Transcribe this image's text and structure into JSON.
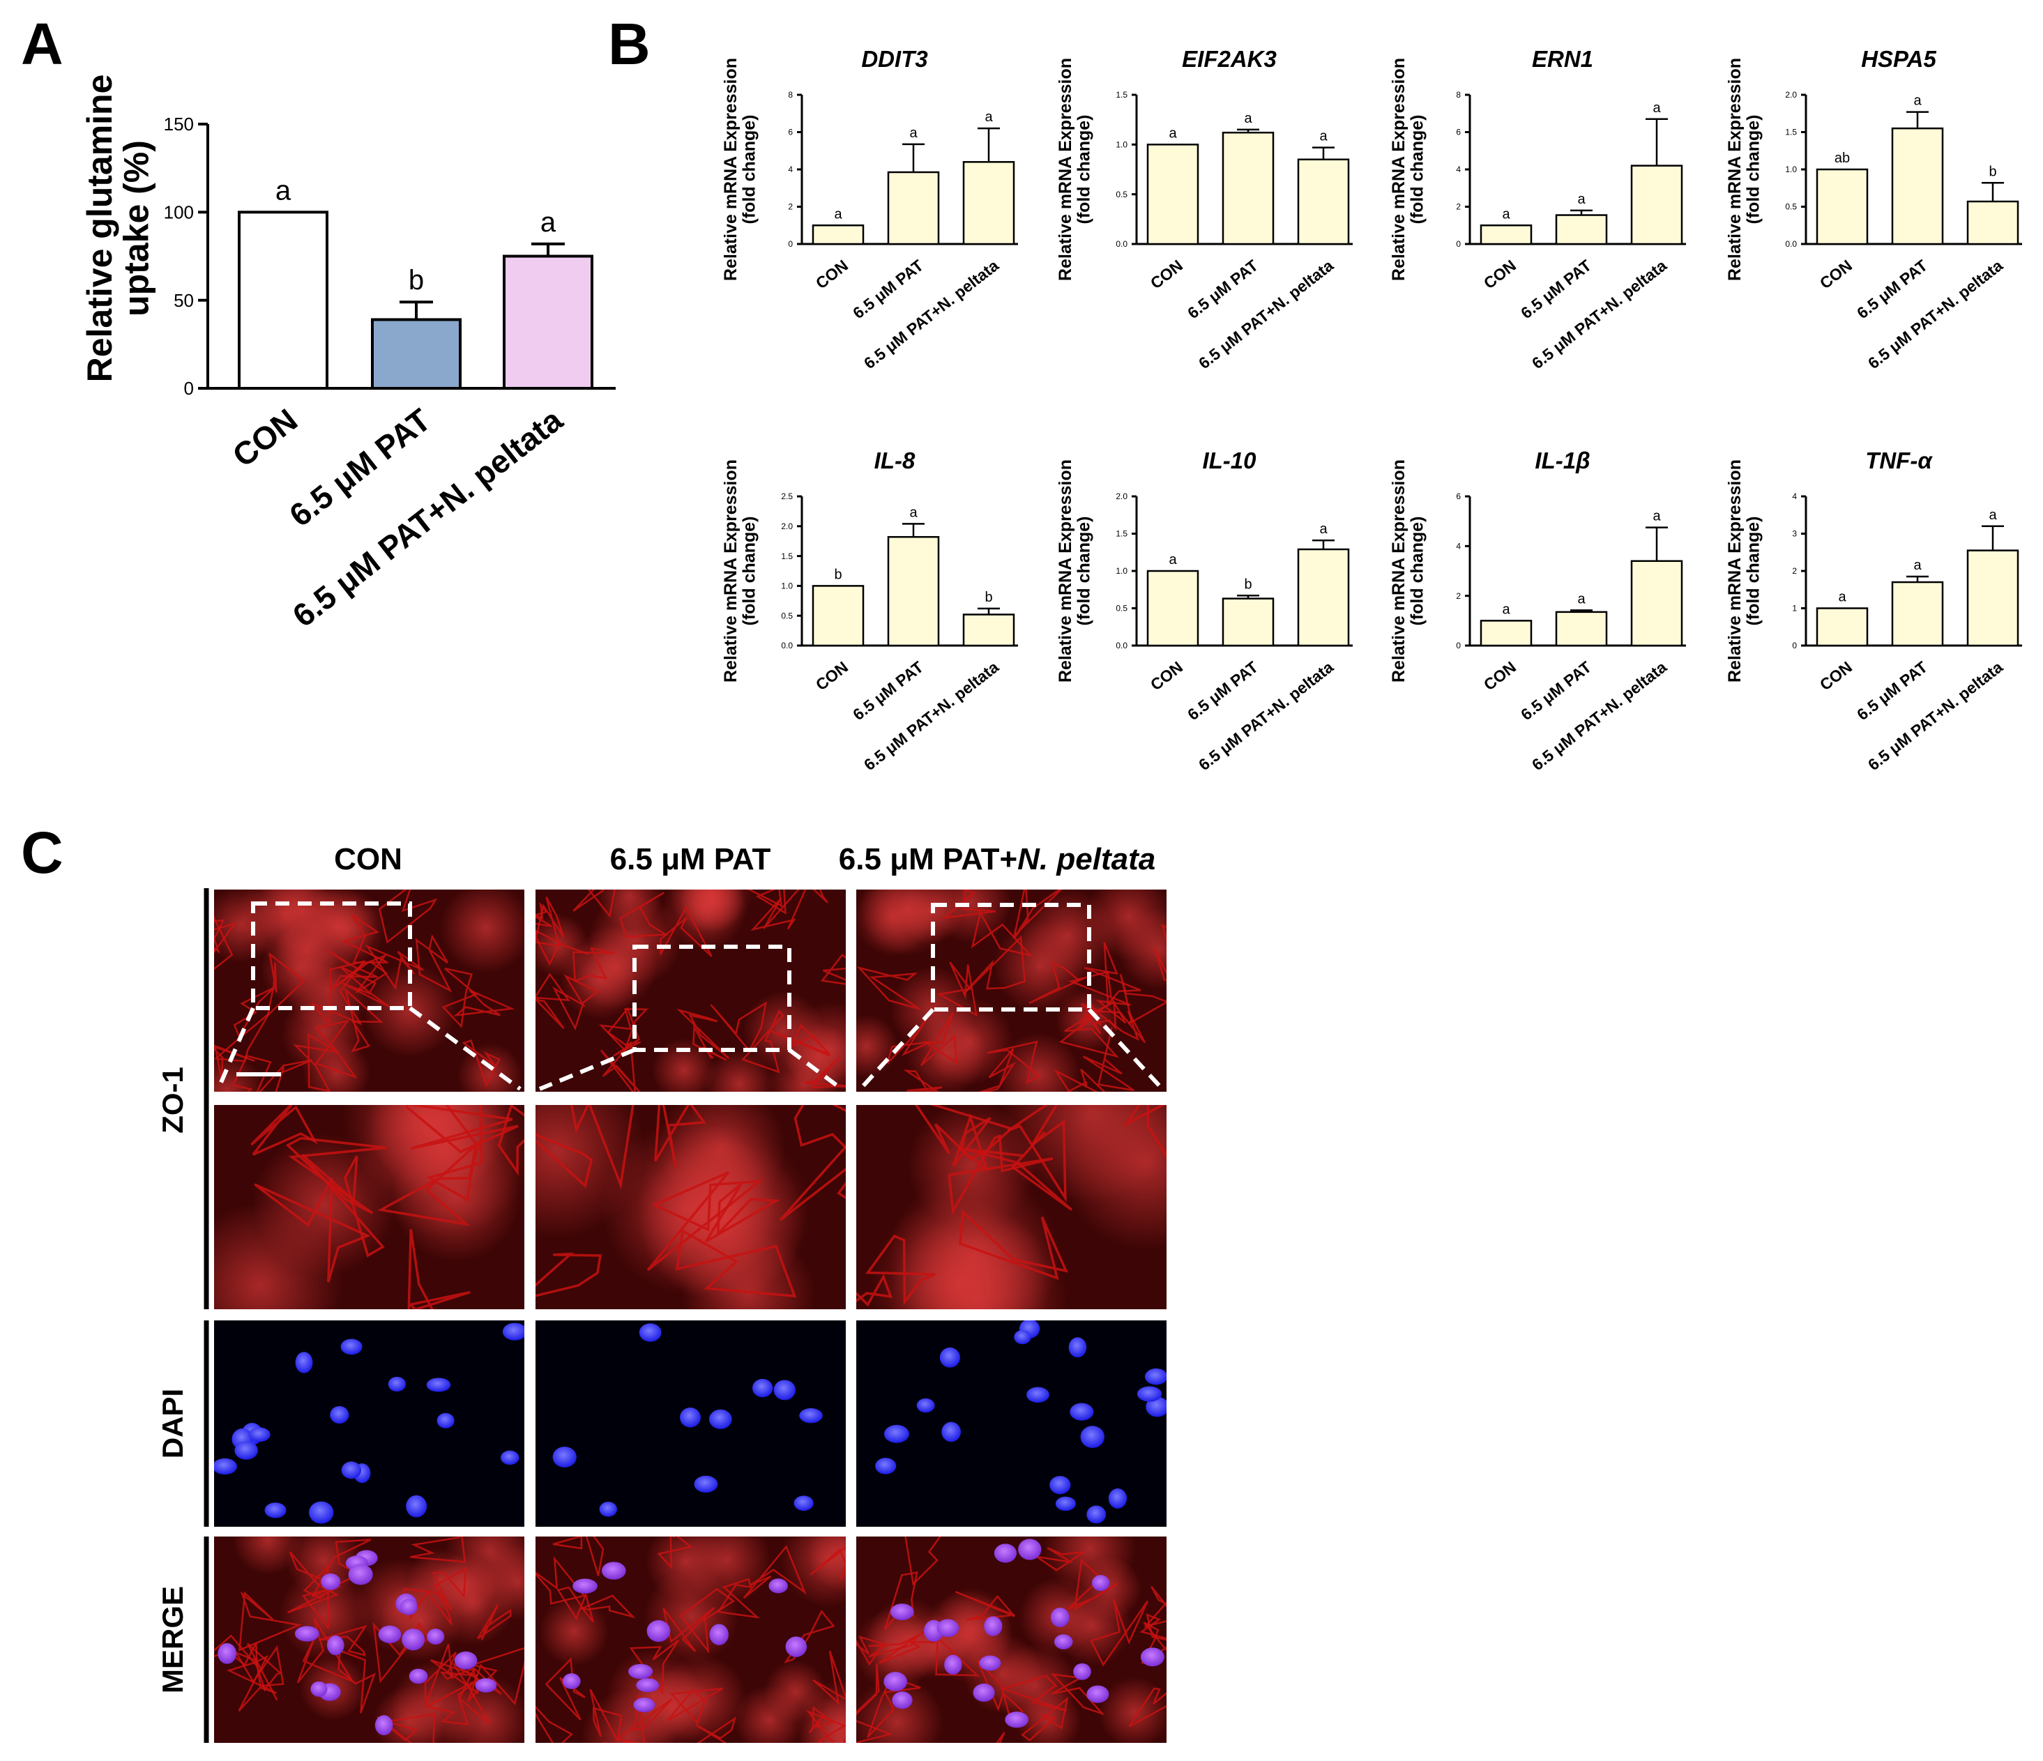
{
  "panels": {
    "a": "A",
    "b": "B",
    "c": "C"
  },
  "colors": {
    "con_a": "#ffffff",
    "pat_a": "#8aa8cc",
    "peltata_a": "#efccf0",
    "b_bar": "#fffbd9",
    "zo1": "#c81212",
    "dapi": "#2323ee",
    "dapi_bg": "#00000a"
  },
  "chart_data": [
    {
      "id": "glutamine",
      "type": "bar",
      "title": "",
      "ylabel_lines": [
        "Relative glutamine",
        "uptake (%)"
      ],
      "xlabel": "",
      "categories": [
        "CON",
        "6.5 μM PAT",
        "6.5 μM PAT+N. peltata"
      ],
      "values": [
        100,
        39,
        75
      ],
      "errors": [
        0,
        10,
        7
      ],
      "letters": [
        "a",
        "b",
        "a"
      ],
      "ylim": [
        0,
        150
      ],
      "yticks": [
        "0",
        "50",
        "100",
        "150"
      ]
    },
    {
      "id": "DDIT3",
      "type": "bar",
      "title": "DDIT3",
      "ylabel_lines": [
        "Relative mRNA Expression",
        "(fold change)"
      ],
      "categories": [
        "CON",
        "6.5 μM PAT",
        "6.5 μM PAT+N. peltata"
      ],
      "values": [
        1.0,
        3.85,
        4.4
      ],
      "errors": [
        0,
        1.5,
        1.8
      ],
      "letters": [
        "a",
        "a",
        "a"
      ],
      "ylim": [
        0,
        8
      ],
      "yticks": [
        "0",
        "2",
        "4",
        "6",
        "8"
      ]
    },
    {
      "id": "EIF2AK3",
      "type": "bar",
      "title": "EIF2AK3",
      "ylabel_lines": [
        "Relative mRNA Expression",
        "(fold change)"
      ],
      "categories": [
        "CON",
        "6.5 μM PAT",
        "6.5 μM PAT+N. peltata"
      ],
      "values": [
        1.0,
        1.12,
        0.85
      ],
      "errors": [
        0,
        0.03,
        0.12
      ],
      "letters": [
        "a",
        "a",
        "a"
      ],
      "ylim": [
        0,
        1.5
      ],
      "yticks": [
        "0.0",
        "0.5",
        "1.0",
        "1.5"
      ]
    },
    {
      "id": "ERN1",
      "type": "bar",
      "title": "ERN1",
      "ylabel_lines": [
        "Relative mRNA Expression",
        "(fold change)"
      ],
      "categories": [
        "CON",
        "6.5 μM PAT",
        "6.5 μM PAT+N. peltata"
      ],
      "values": [
        1.0,
        1.55,
        4.2
      ],
      "errors": [
        0,
        0.25,
        2.5
      ],
      "letters": [
        "a",
        "a",
        "a"
      ],
      "ylim": [
        0,
        8
      ],
      "yticks": [
        "0",
        "2",
        "4",
        "6",
        "8"
      ]
    },
    {
      "id": "HSPA5",
      "type": "bar",
      "title": "HSPA5",
      "ylabel_lines": [
        "Relative mRNA Expression",
        "(fold change)"
      ],
      "categories": [
        "CON",
        "6.5 μM PAT",
        "6.5 μM PAT+N. peltata"
      ],
      "values": [
        1.0,
        1.55,
        0.57
      ],
      "errors": [
        0,
        0.22,
        0.25
      ],
      "letters": [
        "ab",
        "a",
        "b"
      ],
      "ylim": [
        0,
        2.0
      ],
      "yticks": [
        "0.0",
        "0.5",
        "1.0",
        "1.5",
        "2.0"
      ]
    },
    {
      "id": "IL-8",
      "type": "bar",
      "title": "IL-8",
      "ylabel_lines": [
        "Relative mRNA Expression",
        "(fold change)"
      ],
      "categories": [
        "CON",
        "6.5 μM PAT",
        "6.5 μM PAT+N. peltata"
      ],
      "values": [
        1.0,
        1.82,
        0.52
      ],
      "errors": [
        0,
        0.22,
        0.1
      ],
      "letters": [
        "b",
        "a",
        "b"
      ],
      "ylim": [
        0,
        2.5
      ],
      "yticks": [
        "0.0",
        "0.5",
        "1.0",
        "1.5",
        "2.0",
        "2.5"
      ]
    },
    {
      "id": "IL-10",
      "type": "bar",
      "title": "IL-10",
      "ylabel_lines": [
        "Relative mRNA Expression",
        "(fold change)"
      ],
      "categories": [
        "CON",
        "6.5 μM PAT",
        "6.5 μM PAT+N. peltata"
      ],
      "values": [
        1.0,
        0.63,
        1.29
      ],
      "errors": [
        0,
        0.04,
        0.12
      ],
      "letters": [
        "a",
        "b",
        "a"
      ],
      "ylim": [
        0,
        2.0
      ],
      "yticks": [
        "0.0",
        "0.5",
        "1.0",
        "1.5",
        "2.0"
      ]
    },
    {
      "id": "IL-1β",
      "type": "bar",
      "title": "IL-1β",
      "ylabel_lines": [
        "Relative mRNA Expression",
        "(fold change)"
      ],
      "categories": [
        "CON",
        "6.5 μM PAT",
        "6.5 μM PAT+N. peltata"
      ],
      "values": [
        1.0,
        1.35,
        3.4
      ],
      "errors": [
        0,
        0.07,
        1.35
      ],
      "letters": [
        "a",
        "a",
        "a"
      ],
      "ylim": [
        0,
        6
      ],
      "yticks": [
        "0",
        "2",
        "4",
        "6"
      ]
    },
    {
      "id": "TNF-α",
      "type": "bar",
      "title": "TNF-α",
      "ylabel_lines": [
        "Relative mRNA Expression",
        "(fold change)"
      ],
      "categories": [
        "CON",
        "6.5 μM PAT",
        "6.5 μM PAT+N. peltata"
      ],
      "values": [
        1.0,
        1.7,
        2.55
      ],
      "errors": [
        0,
        0.15,
        0.65
      ],
      "letters": [
        "a",
        "a",
        "a"
      ],
      "ylim": [
        0,
        4
      ],
      "yticks": [
        "0",
        "1",
        "2",
        "3",
        "4"
      ]
    }
  ],
  "microscopy": {
    "column_titles": [
      {
        "main": "CON",
        "italic": ""
      },
      {
        "main": "6.5 μM PAT",
        "italic": ""
      },
      {
        "main": "6.5 μM PAT+",
        "italic": "N. peltata"
      }
    ],
    "row_labels": [
      "ZO-1",
      "DAPI",
      "MERGE"
    ]
  }
}
